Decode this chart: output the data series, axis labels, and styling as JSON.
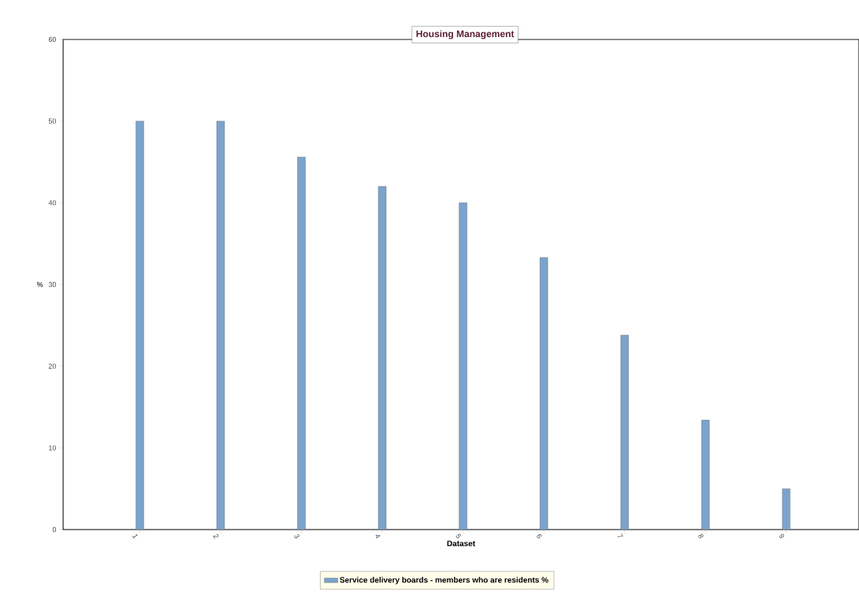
{
  "chart_data": {
    "type": "bar",
    "title": "Housing Management",
    "xlabel": "Dataset",
    "ylabel": "%",
    "categories": [
      "1",
      "2",
      "3",
      "4",
      "5",
      "6",
      "7",
      "8",
      "9"
    ],
    "series": [
      {
        "name": "Service delivery boards - members who are residents %",
        "color": "#7ba3cc",
        "values": [
          50,
          50,
          45.6,
          42,
          40,
          33.3,
          23.8,
          13.4,
          5
        ]
      }
    ],
    "ylim": [
      0,
      60
    ],
    "yticks": [
      0,
      10,
      20,
      30,
      40,
      50,
      60
    ],
    "grid": false,
    "legend": "bottom"
  }
}
